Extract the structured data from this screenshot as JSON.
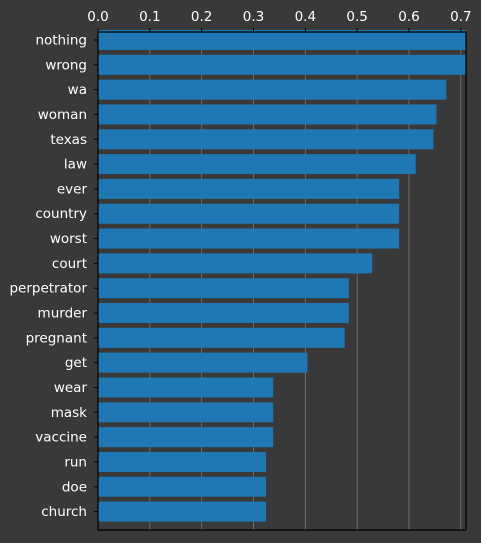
{
  "chart_data": {
    "type": "bar",
    "orientation": "horizontal",
    "title": "",
    "xlabel": "",
    "ylabel": "",
    "xaxis_position": "top",
    "xlim": [
      0,
      0.71
    ],
    "xticks": [
      0.0,
      0.1,
      0.2,
      0.3,
      0.4,
      0.5,
      0.6,
      0.7
    ],
    "xtick_labels": [
      "0.0",
      "0.1",
      "0.2",
      "0.3",
      "0.4",
      "0.5",
      "0.6",
      "0.7"
    ],
    "grid": "vertical",
    "categories": [
      "nothing",
      "wrong",
      "wa",
      "woman",
      "texas",
      "law",
      "ever",
      "country",
      "worst",
      "court",
      "perpetrator",
      "murder",
      "pregnant",
      "get",
      "wear",
      "mask",
      "vaccine",
      "run",
      "doe",
      "church"
    ],
    "values": [
      0.709,
      0.709,
      0.672,
      0.653,
      0.647,
      0.613,
      0.581,
      0.581,
      0.581,
      0.529,
      0.484,
      0.484,
      0.476,
      0.404,
      0.338,
      0.338,
      0.338,
      0.324,
      0.324,
      0.324
    ],
    "colors": {
      "background": "#3a3939",
      "bar": "#1f77b4",
      "text": "#ffffff",
      "axis": "#000000",
      "grid": "#7a7a7a"
    }
  }
}
